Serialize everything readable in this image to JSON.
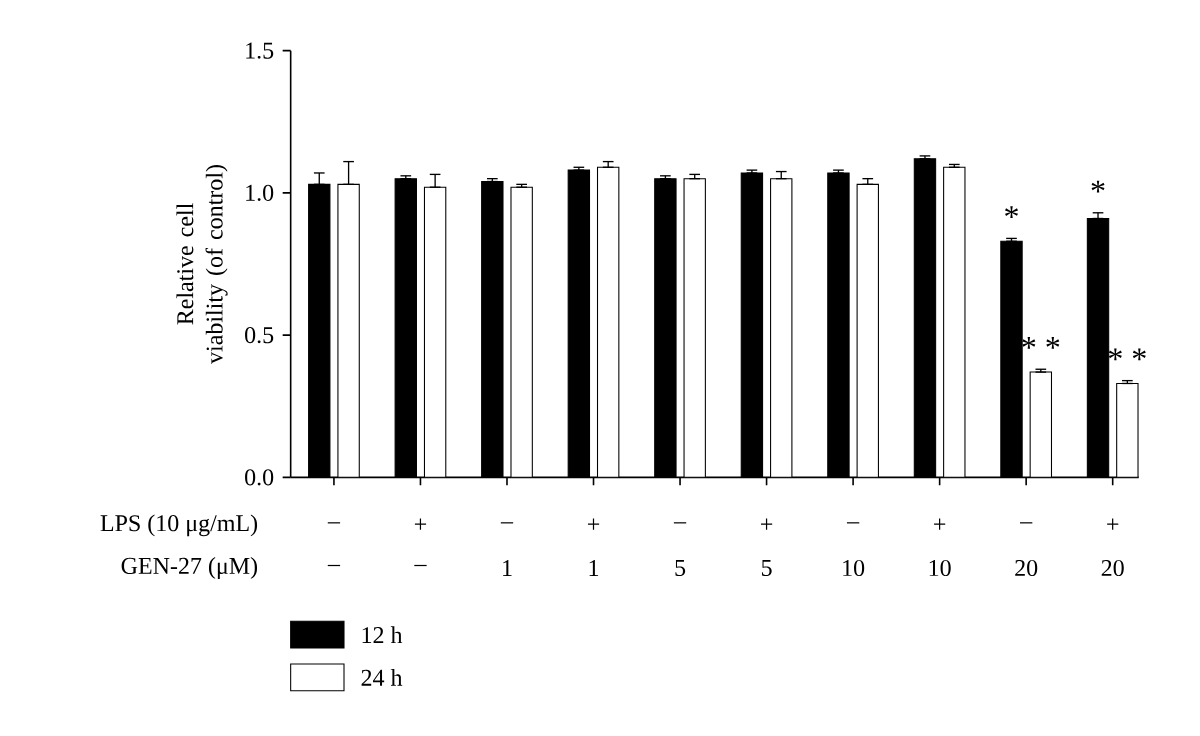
{
  "chart_data": {
    "type": "bar",
    "categories": [
      [
        "–",
        "–"
      ],
      [
        "+",
        "–"
      ],
      [
        "–",
        "1"
      ],
      [
        "+",
        "1"
      ],
      [
        "–",
        "5"
      ],
      [
        "+",
        "5"
      ],
      [
        "–",
        "10"
      ],
      [
        "+",
        "10"
      ],
      [
        "–",
        "20"
      ],
      [
        "+",
        "20"
      ]
    ],
    "annotations": [
      "LPS (10 μg/mL)",
      "GEN-27 (μM)"
    ],
    "ylabel": "Relative cell viability (of control)",
    "ylim": [
      0,
      1.5
    ],
    "yticks": [
      {
        "value": 0,
        "label": "0.0"
      },
      {
        "value": 0.5,
        "label": "0.5"
      },
      {
        "value": 1,
        "label": "1.0"
      },
      {
        "value": 1.5,
        "label": "1.5"
      }
    ],
    "series": [
      {
        "name": "12 h",
        "color": "#000000",
        "values": [
          1.03,
          1.05,
          1.04,
          1.08,
          1.05,
          1.07,
          1.07,
          1.12,
          0.83,
          0.91
        ],
        "errors": [
          [
            1.03,
            1.07
          ],
          [
            1.05,
            1.06
          ],
          [
            1.04,
            1.05
          ],
          [
            1.08,
            1.09
          ],
          [
            1.05,
            1.06
          ],
          [
            1.07,
            1.08
          ],
          [
            1.07,
            1.08
          ],
          [
            1.12,
            1.13
          ],
          [
            0.83,
            0.84
          ],
          [
            0.91,
            0.93
          ]
        ],
        "value_labels": [
          null,
          null,
          null,
          null,
          null,
          null,
          null,
          null,
          "*",
          "*"
        ]
      },
      {
        "name": "24 h",
        "color": "#ffffff",
        "values": [
          1.03,
          1.02,
          1.02,
          1.09,
          1.05,
          1.05,
          1.03,
          1.09,
          0.37,
          0.33
        ],
        "errors": [
          [
            1.03,
            1.11
          ],
          [
            1.02,
            1.065
          ],
          [
            1.02,
            1.03
          ],
          [
            1.09,
            1.11
          ],
          [
            1.05,
            1.065
          ],
          [
            1.05,
            1.075
          ],
          [
            1.03,
            1.05
          ],
          [
            1.09,
            1.1
          ],
          [
            0.37,
            0.38
          ],
          [
            0.33,
            0.34
          ]
        ],
        "value_labels": [
          null,
          null,
          null,
          null,
          null,
          null,
          null,
          null,
          "* *",
          "* *"
        ]
      }
    ],
    "legend": "bottom left",
    "grid": false
  }
}
